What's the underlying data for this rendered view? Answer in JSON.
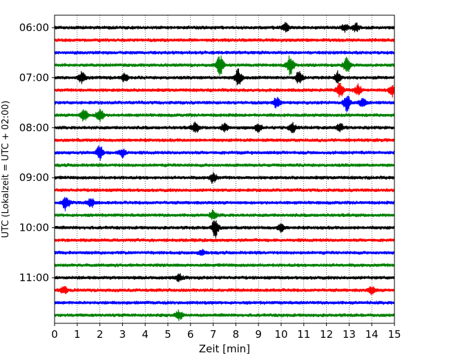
{
  "chart_data": {
    "type": "line",
    "subtype": "helicorder",
    "xlabel": "Zeit  [min]",
    "ylabel": "UTC (Lokalzeit = UTC + 02:00)",
    "xlim": [
      0,
      15
    ],
    "x_ticks": [
      0,
      1,
      2,
      3,
      4,
      5,
      6,
      7,
      8,
      9,
      10,
      11,
      12,
      13,
      14,
      15
    ],
    "x_grid": "dotted vertical lines at each minute",
    "y_tick_labels": [
      "06:00",
      "07:00",
      "08:00",
      "09:00",
      "10:00",
      "11:00"
    ],
    "y_tick_times": [
      "06:00",
      "07:00",
      "08:00",
      "09:00",
      "10:00",
      "11:00"
    ],
    "start_time": "06:00",
    "trace_duration_minutes": 15,
    "trace_count": 24,
    "trace_colors": [
      "#000000",
      "#ff0000",
      "#0000ff",
      "#008000"
    ],
    "series": [
      {
        "start": "06:00",
        "color": "#000000",
        "events": [
          {
            "minute": 10.2,
            "amp": 0.45
          },
          {
            "minute": 12.8,
            "amp": 0.35
          },
          {
            "minute": 13.3,
            "amp": 0.45
          }
        ]
      },
      {
        "start": "06:15",
        "color": "#ff0000",
        "events": []
      },
      {
        "start": "06:30",
        "color": "#0000ff",
        "events": []
      },
      {
        "start": "06:45",
        "color": "#008000",
        "events": [
          {
            "minute": 7.3,
            "amp": 1.0
          },
          {
            "minute": 10.4,
            "amp": 1.0
          },
          {
            "minute": 12.9,
            "amp": 0.8
          }
        ]
      },
      {
        "start": "07:00",
        "color": "#000000",
        "events": [
          {
            "minute": 1.2,
            "amp": 0.5
          },
          {
            "minute": 3.1,
            "amp": 0.4
          },
          {
            "minute": 8.1,
            "amp": 0.85
          },
          {
            "minute": 10.8,
            "amp": 0.7
          },
          {
            "minute": 12.5,
            "amp": 0.6
          }
        ]
      },
      {
        "start": "07:15",
        "color": "#ff0000",
        "events": [
          {
            "minute": 12.6,
            "amp": 0.75
          },
          {
            "minute": 13.4,
            "amp": 0.5
          },
          {
            "minute": 14.9,
            "amp": 0.6
          }
        ]
      },
      {
        "start": "07:30",
        "color": "#0000ff",
        "events": [
          {
            "minute": 9.8,
            "amp": 0.5
          },
          {
            "minute": 12.9,
            "amp": 0.85
          },
          {
            "minute": 13.6,
            "amp": 0.4
          }
        ]
      },
      {
        "start": "07:45",
        "color": "#008000",
        "events": [
          {
            "minute": 1.3,
            "amp": 0.6
          },
          {
            "minute": 2.0,
            "amp": 0.7
          }
        ]
      },
      {
        "start": "08:00",
        "color": "#000000",
        "events": [
          {
            "minute": 6.2,
            "amp": 0.55
          },
          {
            "minute": 7.5,
            "amp": 0.4
          },
          {
            "minute": 9.0,
            "amp": 0.4
          },
          {
            "minute": 10.5,
            "amp": 0.45
          },
          {
            "minute": 12.6,
            "amp": 0.4
          }
        ]
      },
      {
        "start": "08:15",
        "color": "#ff0000",
        "events": []
      },
      {
        "start": "08:30",
        "color": "#0000ff",
        "events": [
          {
            "minute": 2.0,
            "amp": 0.7
          },
          {
            "minute": 3.0,
            "amp": 0.45
          }
        ]
      },
      {
        "start": "08:45",
        "color": "#008000",
        "events": []
      },
      {
        "start": "09:00",
        "color": "#000000",
        "events": [
          {
            "minute": 7.0,
            "amp": 0.5
          }
        ]
      },
      {
        "start": "09:15",
        "color": "#ff0000",
        "events": []
      },
      {
        "start": "09:30",
        "color": "#0000ff",
        "events": [
          {
            "minute": 0.5,
            "amp": 0.75
          },
          {
            "minute": 1.6,
            "amp": 0.45
          }
        ]
      },
      {
        "start": "09:45",
        "color": "#008000",
        "events": [
          {
            "minute": 7.0,
            "amp": 0.45
          }
        ]
      },
      {
        "start": "10:00",
        "color": "#000000",
        "events": [
          {
            "minute": 7.1,
            "amp": 1.0
          },
          {
            "minute": 10.0,
            "amp": 0.35
          }
        ]
      },
      {
        "start": "10:15",
        "color": "#ff0000",
        "events": []
      },
      {
        "start": "10:30",
        "color": "#0000ff",
        "events": [
          {
            "minute": 6.5,
            "amp": 0.3
          }
        ]
      },
      {
        "start": "10:45",
        "color": "#008000",
        "events": []
      },
      {
        "start": "11:00",
        "color": "#000000",
        "events": [
          {
            "minute": 5.5,
            "amp": 0.35
          }
        ]
      },
      {
        "start": "11:15",
        "color": "#ff0000",
        "events": [
          {
            "minute": 0.4,
            "amp": 0.4
          },
          {
            "minute": 14.0,
            "amp": 0.35
          }
        ]
      },
      {
        "start": "11:30",
        "color": "#0000ff",
        "events": []
      },
      {
        "start": "11:45",
        "color": "#008000",
        "events": [
          {
            "minute": 5.5,
            "amp": 0.45
          }
        ]
      }
    ]
  }
}
